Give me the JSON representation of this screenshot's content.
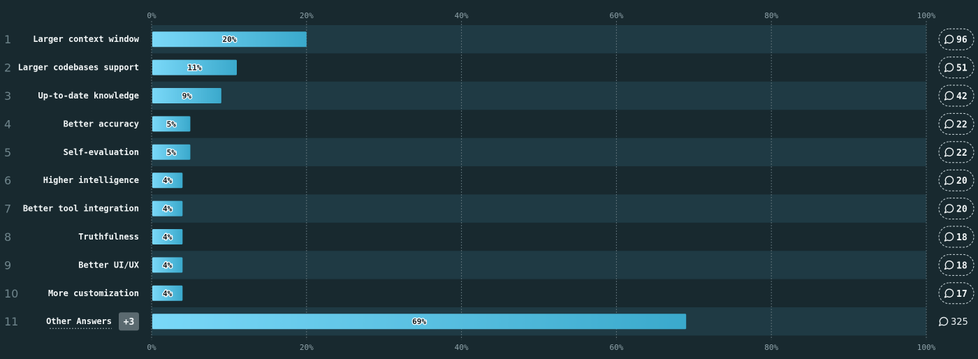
{
  "chart_data": {
    "type": "bar",
    "orientation": "horizontal",
    "xlim": [
      0,
      100
    ],
    "x_ticks": [
      "0%",
      "20%",
      "40%",
      "60%",
      "80%",
      "100%"
    ],
    "grid": true,
    "ranks": [
      "1",
      "2",
      "3",
      "4",
      "5",
      "6",
      "7",
      "8",
      "9",
      "10",
      "11"
    ],
    "categories": [
      "Larger context window",
      "Larger codebases support",
      "Up-to-date knowledge",
      "Better accuracy",
      "Self-evaluation",
      "Higher intelligence",
      "Better tool integration",
      "Truthfulness",
      "Better UI/UX",
      "More customization",
      "Other Answers"
    ],
    "values": [
      20,
      11,
      9,
      5,
      5,
      4,
      4,
      4,
      4,
      4,
      69
    ],
    "value_labels": [
      "20%",
      "11%",
      "9%",
      "5%",
      "5%",
      "4%",
      "4%",
      "4%",
      "4%",
      "4%",
      "69%"
    ],
    "comment_counts": [
      "96",
      "51",
      "42",
      "22",
      "22",
      "20",
      "20",
      "18",
      "18",
      "17",
      "325"
    ],
    "other_badge": "+3",
    "colors": {
      "background": "#18292f",
      "band": "#1f3a44",
      "bar_light": "#7ad8f8",
      "bar_dark": "#3aa9cc",
      "grid": "#5d7077"
    }
  }
}
